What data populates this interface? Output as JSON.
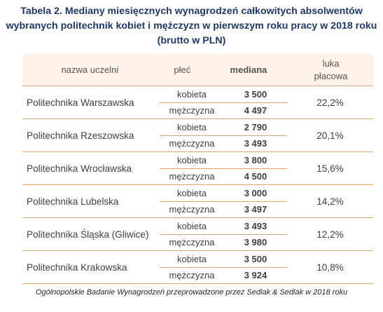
{
  "title": {
    "line1": "Tabela 2. Mediany miesięcznych wynagrodzeń całkowitych absolwentów",
    "line2": "wybranych politechnik kobiet i mężczyzn w pierwszym roku pracy w 2018 roku",
    "line3": "(brutto w PLN)"
  },
  "headers": {
    "name": "nazwa uczelni",
    "gender": "płeć",
    "median": "mediana",
    "gap_line1": "luka",
    "gap_line2": "płacowa"
  },
  "rows": [
    {
      "name": "Politechnika Warszawska",
      "female_label": "kobieta",
      "female_median": "3 500",
      "male_label": "mężczyzna",
      "male_median": "4 497",
      "gap": "22,2%"
    },
    {
      "name": "Politechnika Rzeszowska",
      "female_label": "kobieta",
      "female_median": "2 790",
      "male_label": "mężczyzna",
      "male_median": "3 493",
      "gap": "20,1%"
    },
    {
      "name": "Politechnika Wrocławska",
      "female_label": "kobieta",
      "female_median": "3 800",
      "male_label": "mężczyzna",
      "male_median": "4 500",
      "gap": "15,6%"
    },
    {
      "name": "Politechnika Lubelska",
      "female_label": "kobieta",
      "female_median": "3 000",
      "male_label": "mężczyzna",
      "male_median": "3 497",
      "gap": "14,2%"
    },
    {
      "name": "Politechnika Śląska (Gliwice)",
      "female_label": "kobieta",
      "female_median": "3 493",
      "male_label": "mężczyzna",
      "male_median": "3 980",
      "gap": "12,2%"
    },
    {
      "name": "Politechnika Krakowska",
      "female_label": "kobieta",
      "female_median": "3 500",
      "male_label": "mężczyzna",
      "male_median": "3 924",
      "gap": "10,8%"
    }
  ],
  "footer": "Ogólnopolskie Badanie Wynagrodzeń przeprowadzone przez Sedlak & Sedlak w 2018 roku",
  "colors": {
    "title": "#1f3864",
    "header_bg": "#fdf2e9",
    "border": "#e8a36a"
  }
}
